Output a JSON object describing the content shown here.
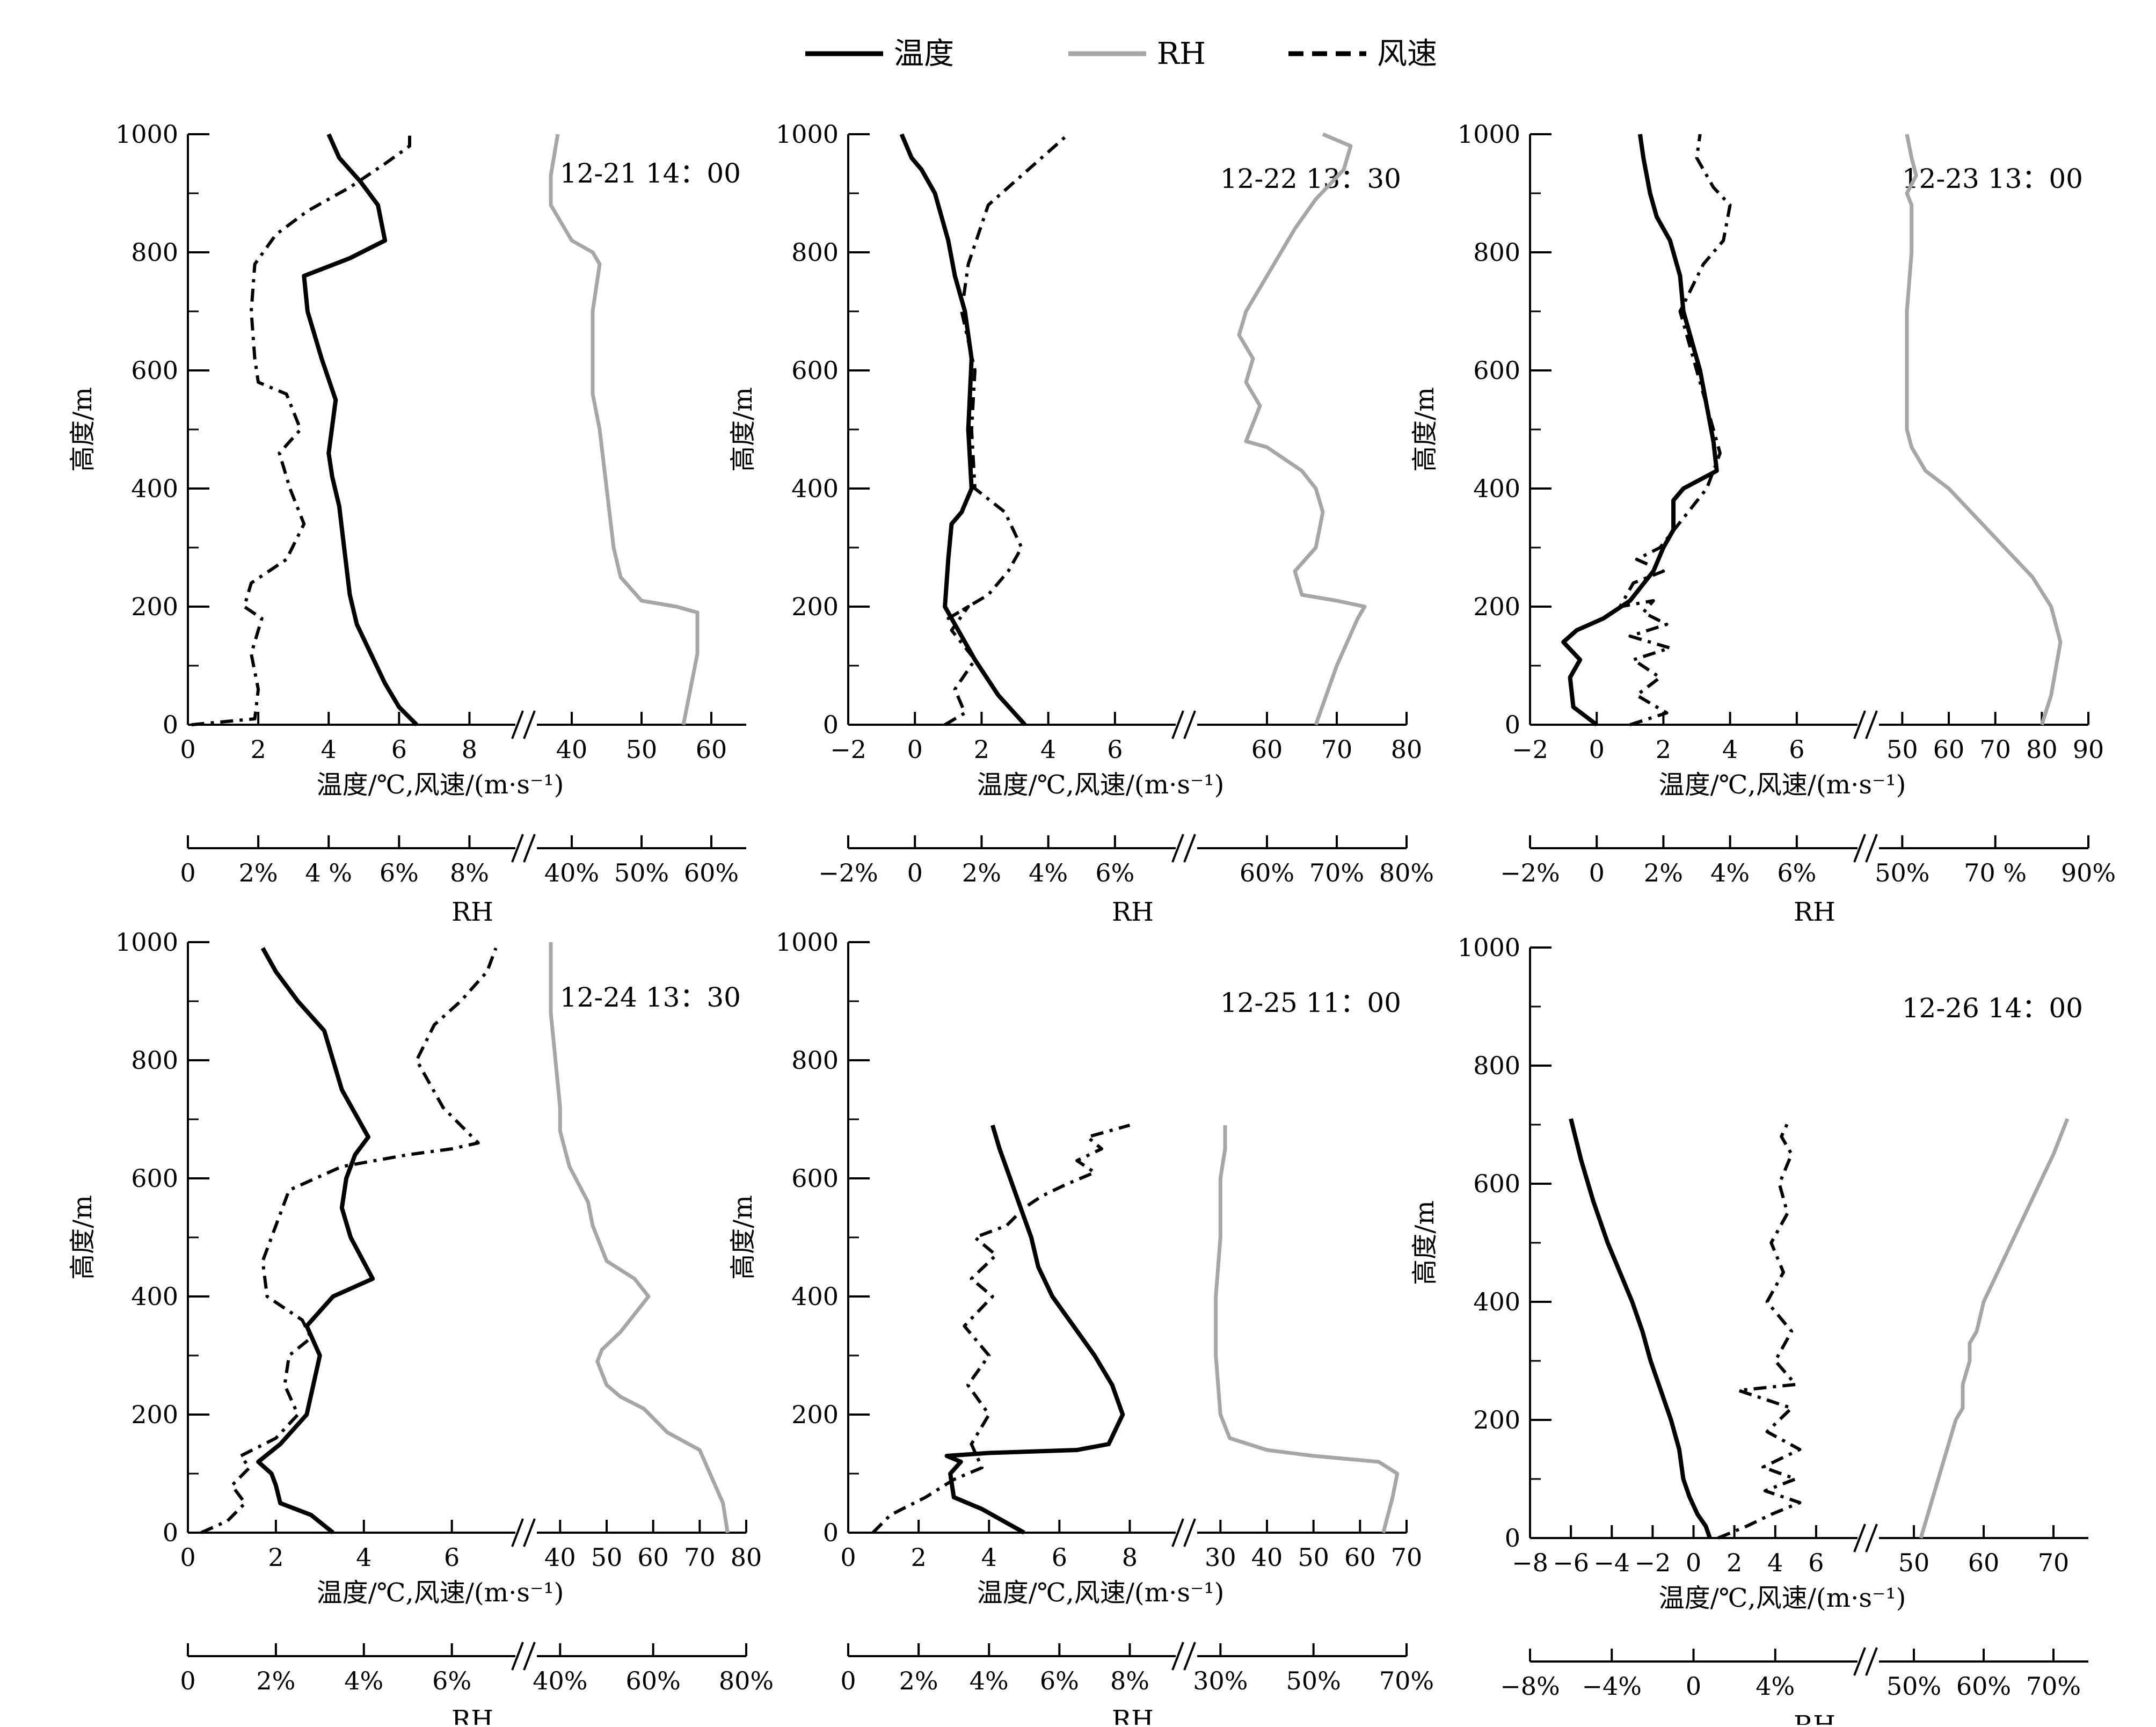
{
  "legend": {
    "items": [
      {
        "label": "温度",
        "color": "#000000",
        "dash": "solid"
      },
      {
        "label": "RH",
        "color": "#a6a6a6",
        "dash": "solid"
      },
      {
        "label": "风速",
        "color": "#000000",
        "dash": "dashed"
      }
    ]
  },
  "chart_data": [
    {
      "type": "line",
      "title": "12-21 14：00",
      "ylabel": "高度/m",
      "xlabel": "温度/℃,风速/(m·s⁻¹)",
      "x2label": "RH",
      "ylim": [
        0,
        1000
      ],
      "yticks": [
        "0",
        "200",
        "400",
        "600",
        "800",
        "1000"
      ],
      "x_left_ticks": [
        "0",
        "2",
        "4",
        "6",
        "8"
      ],
      "x_right_ticks": [
        "40",
        "50",
        "60"
      ],
      "rh_left_ticks": [
        "0",
        "2%",
        "4 %",
        "6%",
        "8%"
      ],
      "rh_right_ticks": [
        "40%",
        "50%",
        "60%"
      ],
      "series": [
        {
          "name": "温度",
          "x": [
            6.5,
            6.0,
            5.6,
            5.2,
            4.8,
            4.6,
            4.5,
            4.4,
            4.3,
            4.1,
            4.0,
            4.2,
            3.8,
            3.4,
            3.3,
            4.6,
            5.6,
            5.4,
            4.9,
            4.3,
            4.0
          ],
          "y": [
            0,
            30,
            70,
            120,
            170,
            220,
            270,
            320,
            370,
            420,
            460,
            550,
            620,
            700,
            760,
            790,
            820,
            880,
            920,
            960,
            1000
          ]
        },
        {
          "name": "风速",
          "x": [
            0.1,
            1.9,
            2.0,
            1.8,
            2.1,
            1.6,
            1.8,
            2.8,
            3.3,
            2.9,
            2.6,
            3.2,
            2.8,
            2.0,
            1.9,
            1.8,
            1.9,
            2.5,
            3.4,
            4.6,
            5.6,
            6.3,
            6.3
          ],
          "y": [
            0,
            10,
            60,
            120,
            180,
            200,
            240,
            280,
            340,
            400,
            460,
            500,
            560,
            580,
            620,
            700,
            780,
            830,
            870,
            910,
            950,
            980,
            1000
          ]
        },
        {
          "name": "RH",
          "x": [
            56,
            57,
            58,
            58,
            55,
            50,
            47,
            46,
            45,
            44,
            43,
            43,
            44,
            43,
            40,
            37,
            37,
            38
          ],
          "y": [
            0,
            60,
            120,
            190,
            200,
            210,
            250,
            300,
            400,
            500,
            560,
            700,
            780,
            800,
            820,
            880,
            930,
            1000
          ]
        }
      ]
    },
    {
      "type": "line",
      "title": "12-22 13：30",
      "ylabel": "高度/m",
      "xlabel": "温度/℃,风速/(m·s⁻¹)",
      "x2label": "RH",
      "ylim": [
        0,
        1000
      ],
      "yticks": [
        "0",
        "200",
        "400",
        "600",
        "800",
        "1000"
      ],
      "x_left_ticks": [
        "−2",
        "0",
        "2",
        "4",
        "6"
      ],
      "x_right_ticks": [
        "60",
        "70",
        "80"
      ],
      "rh_left_ticks": [
        "−2%",
        "0",
        "2%",
        "4%",
        "6%"
      ],
      "rh_right_ticks": [
        "60%",
        "70%",
        "80%"
      ],
      "series": [
        {
          "name": "温度",
          "x": [
            3.3,
            2.5,
            1.8,
            1.2,
            0.9,
            1.0,
            1.1,
            1.4,
            1.7,
            1.6,
            1.7,
            1.5,
            1.2,
            1.0,
            0.6,
            0.2,
            -0.1,
            -0.4
          ],
          "y": [
            0,
            50,
            110,
            170,
            200,
            280,
            340,
            360,
            400,
            500,
            620,
            700,
            760,
            820,
            900,
            940,
            960,
            1000
          ]
        },
        {
          "name": "风速",
          "x": [
            0.9,
            1.5,
            1.2,
            1.8,
            1.1,
            1.6,
            1.0,
            2.2,
            2.8,
            3.2,
            2.7,
            1.8,
            1.7,
            1.8,
            1.4,
            1.6,
            2.2,
            3.0,
            3.8,
            4.6
          ],
          "y": [
            0,
            20,
            60,
            110,
            160,
            200,
            180,
            220,
            260,
            300,
            360,
            400,
            500,
            600,
            700,
            780,
            880,
            920,
            960,
            1000
          ]
        },
        {
          "name": "RH",
          "x": [
            67,
            70,
            73,
            74,
            70,
            65,
            64,
            67,
            68,
            67,
            65,
            60,
            57,
            59,
            57,
            58,
            56,
            57,
            61,
            64,
            67,
            71,
            72,
            68
          ],
          "y": [
            0,
            100,
            180,
            200,
            210,
            220,
            260,
            300,
            360,
            400,
            430,
            470,
            480,
            540,
            580,
            620,
            660,
            700,
            780,
            840,
            890,
            940,
            980,
            1000
          ]
        }
      ]
    },
    {
      "type": "line",
      "title": "12-23 13：00",
      "ylabel": "高度/m",
      "xlabel": "温度/℃,风速/(m·s⁻¹)",
      "x2label": "RH",
      "ylim": [
        0,
        1000
      ],
      "yticks": [
        "0",
        "200",
        "400",
        "600",
        "800",
        "1000"
      ],
      "x_left_ticks": [
        "−2",
        "0",
        "2",
        "4",
        "6"
      ],
      "x_right_ticks": [
        "50",
        "60",
        "70",
        "80",
        "90"
      ],
      "rh_left_ticks": [
        "−2%",
        "0",
        "2%",
        "4%",
        "6%"
      ],
      "rh_right_ticks": [
        "50%",
        "70 %",
        "90%"
      ],
      "series": [
        {
          "name": "温度",
          "x": [
            0.0,
            -0.7,
            -0.8,
            -0.5,
            -1.0,
            -0.6,
            0.2,
            1.0,
            1.7,
            2.0,
            2.3,
            2.3,
            2.6,
            3.6,
            3.5,
            3.1,
            2.6,
            2.5,
            2.2,
            1.8,
            1.6,
            1.4,
            1.3
          ],
          "y": [
            0,
            30,
            80,
            110,
            140,
            160,
            180,
            210,
            260,
            300,
            330,
            380,
            400,
            430,
            480,
            600,
            700,
            760,
            820,
            860,
            900,
            960,
            1000
          ]
        },
        {
          "name": "风速",
          "x": [
            1.0,
            2.1,
            1.2,
            1.9,
            1.1,
            2.2,
            1.0,
            2.1,
            1.4,
            1.7,
            0.7,
            1.1,
            2.0,
            1.2,
            1.9,
            3.3,
            3.7,
            3.0,
            2.5,
            3.2,
            3.8,
            4.0,
            3.5,
            3.0,
            3.1
          ],
          "y": [
            0,
            20,
            50,
            80,
            110,
            130,
            150,
            170,
            190,
            210,
            200,
            240,
            260,
            280,
            300,
            400,
            460,
            600,
            700,
            780,
            820,
            880,
            910,
            960,
            1000
          ]
        },
        {
          "name": "RH",
          "x": [
            80,
            82,
            84,
            82,
            78,
            72,
            66,
            60,
            55,
            52,
            51,
            51,
            51,
            52,
            52,
            51,
            53,
            52,
            51
          ],
          "y": [
            0,
            50,
            140,
            200,
            250,
            300,
            350,
            400,
            430,
            470,
            500,
            600,
            700,
            800,
            880,
            900,
            930,
            960,
            1000
          ]
        }
      ]
    },
    {
      "type": "line",
      "title": "12-24 13：30",
      "ylabel": "高度/m",
      "xlabel": "温度/℃,风速/(m·s⁻¹)",
      "x2label": "RH",
      "ylim": [
        0,
        1000
      ],
      "yticks": [
        "0",
        "200",
        "400",
        "600",
        "800",
        "1000"
      ],
      "x_left_ticks": [
        "0",
        "2",
        "4",
        "6"
      ],
      "x_right_ticks": [
        "40",
        "50",
        "60",
        "70",
        "80"
      ],
      "rh_left_ticks": [
        "0",
        "2%",
        "4%",
        "6%"
      ],
      "rh_right_ticks": [
        "40%",
        "60%",
        "80%"
      ],
      "series": [
        {
          "name": "温度",
          "x": [
            3.3,
            2.8,
            2.1,
            2.0,
            1.9,
            1.6,
            2.1,
            2.7,
            3.0,
            2.7,
            3.3,
            4.2,
            3.7,
            3.5,
            3.6,
            3.8,
            4.1,
            3.5,
            3.3,
            3.1,
            2.5,
            2.0,
            1.7
          ],
          "y": [
            0,
            30,
            50,
            80,
            100,
            120,
            150,
            200,
            300,
            350,
            400,
            430,
            500,
            550,
            600,
            640,
            670,
            750,
            800,
            850,
            900,
            950,
            990
          ]
        },
        {
          "name": "风速",
          "x": [
            0.3,
            0.9,
            1.3,
            1.0,
            1.4,
            1.2,
            2.0,
            2.5,
            2.2,
            2.3,
            2.8,
            2.6,
            1.8,
            1.7,
            2.3,
            3.5,
            5.0,
            6.0,
            6.6,
            5.8,
            5.2,
            5.6,
            6.2,
            6.8,
            7.0
          ],
          "y": [
            0,
            20,
            50,
            80,
            110,
            130,
            160,
            200,
            250,
            300,
            330,
            360,
            400,
            460,
            580,
            620,
            640,
            650,
            660,
            720,
            800,
            860,
            900,
            950,
            990
          ]
        },
        {
          "name": "RH",
          "x": [
            76,
            75,
            70,
            63,
            58,
            53,
            50,
            48,
            49,
            53,
            59,
            56,
            50,
            47,
            46,
            42,
            40,
            40,
            39,
            38,
            38
          ],
          "y": [
            0,
            50,
            140,
            170,
            210,
            230,
            250,
            290,
            310,
            340,
            400,
            430,
            460,
            520,
            560,
            620,
            680,
            720,
            800,
            880,
            1000
          ]
        }
      ]
    },
    {
      "type": "line",
      "title": "12-25 11：00",
      "ylabel": "高度/m",
      "xlabel": "温度/℃,风速/(m·s⁻¹)",
      "x2label": "RH",
      "ylim": [
        0,
        1000
      ],
      "yticks": [
        "0",
        "200",
        "400",
        "600",
        "800",
        "1000"
      ],
      "x_left_ticks": [
        "0",
        "2",
        "4",
        "6",
        "8"
      ],
      "x_right_ticks": [
        "30",
        "40",
        "50",
        "60",
        "70"
      ],
      "rh_left_ticks": [
        "0",
        "2%",
        "4%",
        "6%",
        "8%"
      ],
      "rh_right_ticks": [
        "30%",
        "50%",
        "70%"
      ],
      "series": [
        {
          "name": "温度",
          "x": [
            5.0,
            4.4,
            3.8,
            3.0,
            2.9,
            3.2,
            2.8,
            4.0,
            6.5,
            7.4,
            7.8,
            7.5,
            7.0,
            6.4,
            5.8,
            5.4,
            5.2,
            4.9,
            4.6,
            4.3,
            4.1
          ],
          "y": [
            0,
            20,
            40,
            60,
            100,
            120,
            130,
            135,
            140,
            150,
            200,
            250,
            300,
            350,
            400,
            450,
            500,
            550,
            600,
            650,
            690
          ]
        },
        {
          "name": "风速",
          "x": [
            0.7,
            1.2,
            2.2,
            3.0,
            3.8,
            3.5,
            4.0,
            3.4,
            4.0,
            3.3,
            4.1,
            3.5,
            4.2,
            3.6,
            4.5,
            5.0,
            5.5,
            6.2,
            7.0,
            6.5,
            7.2,
            6.8,
            8.0
          ],
          "y": [
            0,
            30,
            60,
            90,
            110,
            150,
            200,
            250,
            300,
            350,
            400,
            430,
            470,
            500,
            520,
            550,
            570,
            590,
            610,
            630,
            650,
            670,
            690
          ]
        },
        {
          "name": "RH",
          "x": [
            65,
            67,
            68,
            64,
            50,
            40,
            32,
            30,
            29,
            29,
            30,
            30,
            31,
            31
          ],
          "y": [
            0,
            60,
            100,
            120,
            130,
            140,
            160,
            200,
            300,
            400,
            500,
            600,
            650,
            690
          ]
        }
      ]
    },
    {
      "type": "line",
      "title": "12-26 14：00",
      "ylabel": "高度/m",
      "xlabel": "温度/℃,风速/(m·s⁻¹)",
      "x2label": "RH",
      "ylim": [
        0,
        1000
      ],
      "yticks": [
        "0",
        "200",
        "400",
        "600",
        "800",
        "1000"
      ],
      "x_left_ticks": [
        "−8",
        "−6",
        "−4",
        "−2",
        "0",
        "2",
        "4",
        "6"
      ],
      "x_right_ticks": [
        "50",
        "60",
        "70"
      ],
      "rh_left_ticks": [
        "−8%",
        "−4%",
        "0",
        "4%"
      ],
      "rh_right_ticks": [
        "50%",
        "60%",
        "70%"
      ],
      "series": [
        {
          "name": "温度",
          "x": [
            0.8,
            0.6,
            0.2,
            -0.2,
            -0.5,
            -0.7,
            -1.1,
            -1.6,
            -2.1,
            -2.5,
            -3.0,
            -3.6,
            -4.2,
            -4.9,
            -5.5,
            -6.0
          ],
          "y": [
            0,
            20,
            40,
            70,
            100,
            150,
            200,
            250,
            300,
            350,
            400,
            450,
            500,
            570,
            640,
            710
          ]
        },
        {
          "name": "风速",
          "x": [
            1.2,
            2.6,
            3.8,
            5.2,
            3.5,
            5.0,
            3.4,
            5.2,
            3.6,
            4.8,
            2.2,
            5.0,
            4.0,
            4.8,
            3.6,
            4.4,
            3.8,
            4.6,
            4.2,
            4.8,
            4.3,
            4.7
          ],
          "y": [
            0,
            20,
            40,
            60,
            80,
            100,
            120,
            150,
            180,
            220,
            250,
            260,
            300,
            350,
            400,
            450,
            500,
            550,
            600,
            650,
            680,
            710
          ]
        },
        {
          "name": "RH",
          "x": [
            51,
            52,
            53,
            54,
            55,
            56,
            57,
            57,
            58,
            58,
            59,
            60,
            62,
            64,
            66,
            68,
            70,
            72
          ],
          "y": [
            0,
            40,
            80,
            120,
            160,
            200,
            220,
            260,
            300,
            330,
            350,
            400,
            450,
            500,
            550,
            600,
            650,
            710
          ]
        }
      ]
    }
  ]
}
